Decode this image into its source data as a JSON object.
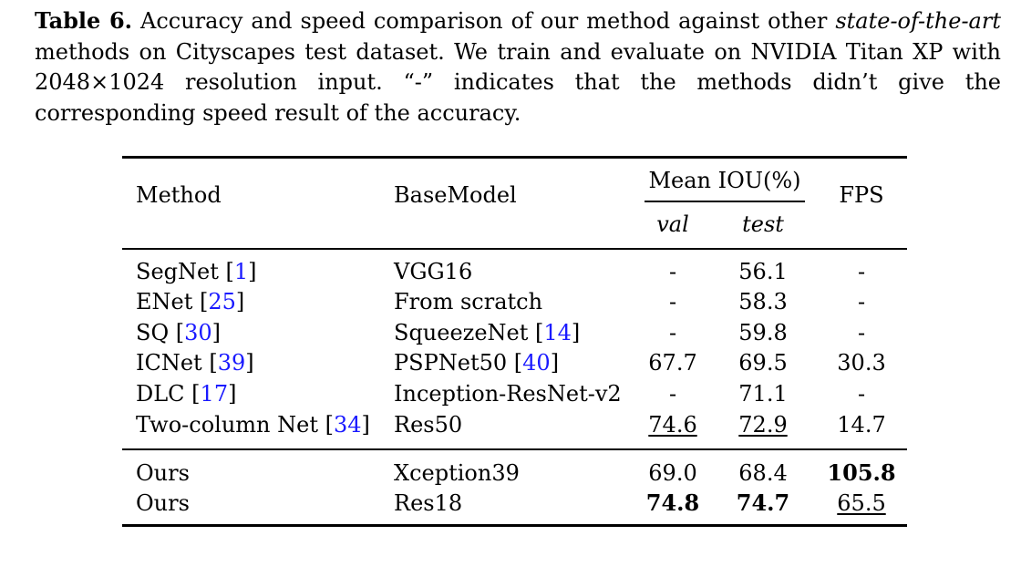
{
  "caption": {
    "label": "Table 6.",
    "part1": " Accuracy and speed comparison of our method against other ",
    "italic": "state-of-the-art",
    "part2": " methods on Cityscapes test dataset. We train and evaluate on NVIDIA Titan XP with 2048×1024 resolution input. “-” indicates that the methods didn’t give the corresponding speed result of the accuracy."
  },
  "headers": {
    "method": "Method",
    "basemodel": "BaseModel",
    "miou": "Mean IOU(%)",
    "val": "val",
    "test": "test",
    "fps": "FPS"
  },
  "rows": [
    {
      "method": "SegNet ",
      "open": "[",
      "cite": "1",
      "close": "]",
      "base": "VGG16",
      "base_cite": "",
      "val": "-",
      "test": "56.1",
      "fps": "-"
    },
    {
      "method": "ENet ",
      "open": "[",
      "cite": "25",
      "close": "]",
      "base": "From scratch",
      "base_cite": "",
      "val": "-",
      "test": "58.3",
      "fps": "-"
    },
    {
      "method": "SQ ",
      "open": "[",
      "cite": "30",
      "close": "]",
      "base": "SqueezeNet ",
      "base_cite": "14",
      "val": "-",
      "test": "59.8",
      "fps": "-"
    },
    {
      "method": "ICNet ",
      "open": "[",
      "cite": "39",
      "close": "]",
      "base": "PSPNet50 ",
      "base_cite": "40",
      "val": "67.7",
      "test": "69.5",
      "fps": "30.3"
    },
    {
      "method": "DLC ",
      "open": "[",
      "cite": "17",
      "close": "]",
      "base": "Inception-ResNet-v2",
      "base_cite": "",
      "val": "-",
      "test": "71.1",
      "fps": "-"
    },
    {
      "method": "Two-column Net ",
      "open": "[",
      "cite": "34",
      "close": "]",
      "base": "Res50",
      "base_cite": "",
      "val": "74.6",
      "test": "72.9",
      "fps": "14.7"
    }
  ],
  "ours": [
    {
      "method": "Ours",
      "base": "Xception39",
      "val": "69.0",
      "test": "68.4",
      "fps": "105.8"
    },
    {
      "method": "Ours",
      "base": "Res18",
      "val": "74.8",
      "test": "74.7",
      "fps": "65.5"
    }
  ]
}
